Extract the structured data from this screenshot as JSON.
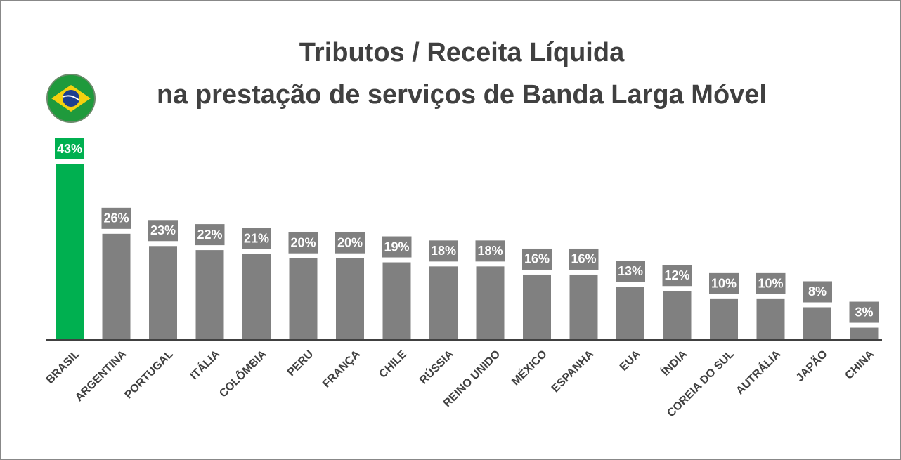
{
  "chart_data": {
    "type": "bar",
    "title": [
      "Tributos / Receita Líquida",
      "na prestação de serviços de Banda Larga Móvel"
    ],
    "categories": [
      "BRASIL",
      "ARGENTINA",
      "PORTUGAL",
      "ITÁLIA",
      "COLÔMBIA",
      "PERU",
      "FRANÇA",
      "CHILE",
      "RÚSSIA",
      "REINO UNIDO",
      "MÉXICO",
      "ESPANHA",
      "EUA",
      "ÍNDIA",
      "COREIA DO SUL",
      "AUTRÁLIA",
      "JAPÃO",
      "CHINA"
    ],
    "values": [
      43,
      26,
      23,
      22,
      21,
      20,
      20,
      19,
      18,
      18,
      16,
      16,
      13,
      12,
      10,
      10,
      8,
      3
    ],
    "value_labels": [
      "43%",
      "26%",
      "23%",
      "22%",
      "21%",
      "20%",
      "20%",
      "19%",
      "18%",
      "18%",
      "16%",
      "16%",
      "13%",
      "12%",
      "10%",
      "10%",
      "8%",
      "3%"
    ],
    "colors": [
      "#00b050",
      "#808080",
      "#808080",
      "#808080",
      "#808080",
      "#808080",
      "#808080",
      "#808080",
      "#808080",
      "#808080",
      "#808080",
      "#808080",
      "#808080",
      "#808080",
      "#808080",
      "#808080",
      "#808080",
      "#808080"
    ]
  }
}
